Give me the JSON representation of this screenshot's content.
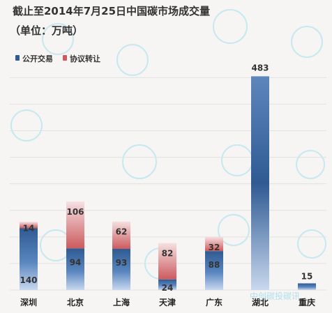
{
  "title_line1": "截止至2014年7月25日中国碳市场成交量",
  "title_line2": "（单位：万吨）",
  "watermark": "中创碳投碳讯",
  "colors": {
    "blue_dark": "#2f5a92",
    "blue_light": "#c8d8ee",
    "red_dark": "#cc5a5e",
    "red_light": "#f5e0e0",
    "grid": "#e2e2e2"
  },
  "chart_data": {
    "type": "bar",
    "stacked": true,
    "categories": [
      "深圳",
      "北京",
      "上海",
      "天津",
      "广东",
      "湖北",
      "重庆"
    ],
    "series": [
      {
        "name": "公开交易",
        "values": [
          140,
          94,
          93,
          24,
          88,
          483,
          15
        ]
      },
      {
        "name": "协议转让",
        "values": [
          14,
          106,
          62,
          82,
          32,
          0,
          0
        ]
      }
    ],
    "ylim": [
      0,
      490
    ],
    "grid": true,
    "legend": "top-left"
  }
}
